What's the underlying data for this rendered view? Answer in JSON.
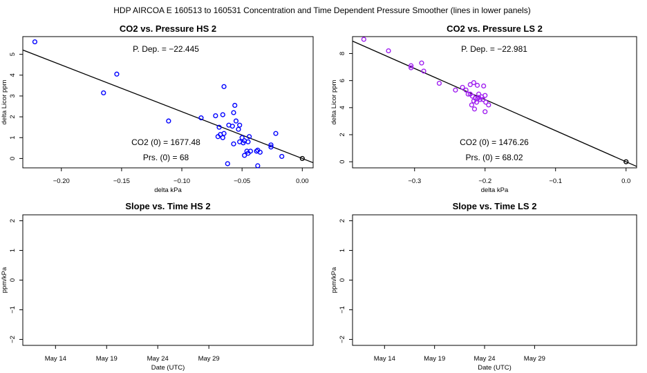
{
  "header": {
    "title": "HDP   AIRCOA E   160513 to 160531   Concentration and Time Dependent Pressure Smoother (lines in lower panels)"
  },
  "colors": {
    "hs_points": "#0000ff",
    "ls_points": "#a020f0",
    "fit_line": "#000000",
    "origin_point": "#000000"
  },
  "chart_data": [
    {
      "type": "scatter",
      "id": "co2-vs-pressure-hs2",
      "title": "CO2 vs. Pressure HS 2",
      "xlabel": "delta kPa",
      "ylabel": "delta Licor ppm",
      "xlim": [
        -0.232,
        0.009
      ],
      "ylim": [
        -0.45,
        5.85
      ],
      "xticks": [
        -0.2,
        -0.15,
        -0.1,
        -0.05,
        0.0
      ],
      "xtick_labels": [
        "−0.20",
        "−0.15",
        "−0.10",
        "−0.05",
        "0.00"
      ],
      "yticks": [
        0,
        1,
        2,
        3,
        4,
        5
      ],
      "ytick_labels": [
        "0",
        "1",
        "2",
        "3",
        "4",
        "5"
      ],
      "annotations": {
        "p_dep": "P. Dep. =  −22.445",
        "co2_0": "CO2 (0) =  1677.48",
        "prs_0": "Prs. (0) =  68"
      },
      "fit": {
        "slope": -22.445,
        "intercept": 0.0
      },
      "origin": [
        0.0,
        0.0
      ],
      "points": [
        [
          -0.222,
          5.6
        ],
        [
          -0.154,
          4.05
        ],
        [
          -0.165,
          3.15
        ],
        [
          -0.111,
          1.8
        ],
        [
          -0.084,
          1.95
        ],
        [
          -0.072,
          2.05
        ],
        [
          -0.066,
          2.1
        ],
        [
          -0.065,
          3.45
        ],
        [
          -0.056,
          2.55
        ],
        [
          -0.057,
          2.2
        ],
        [
          -0.055,
          1.8
        ],
        [
          -0.058,
          1.55
        ],
        [
          -0.061,
          1.6
        ],
        [
          -0.052,
          1.6
        ],
        [
          -0.053,
          1.4
        ],
        [
          -0.069,
          1.5
        ],
        [
          -0.068,
          1.15
        ],
        [
          -0.065,
          1.2
        ],
        [
          -0.07,
          1.05
        ],
        [
          -0.066,
          1.0
        ],
        [
          -0.05,
          1.0
        ],
        [
          -0.048,
          0.85
        ],
        [
          -0.045,
          0.8
        ],
        [
          -0.044,
          1.05
        ],
        [
          -0.052,
          0.8
        ],
        [
          -0.049,
          0.75
        ],
        [
          -0.057,
          0.7
        ],
        [
          -0.046,
          0.35
        ],
        [
          -0.048,
          0.15
        ],
        [
          -0.045,
          0.25
        ],
        [
          -0.043,
          0.35
        ],
        [
          -0.037,
          0.4
        ],
        [
          -0.038,
          0.35
        ],
        [
          -0.035,
          0.3
        ],
        [
          -0.026,
          0.65
        ],
        [
          -0.026,
          0.55
        ],
        [
          -0.022,
          1.2
        ],
        [
          -0.017,
          0.1
        ],
        [
          -0.062,
          -0.25
        ],
        [
          -0.037,
          -0.35
        ]
      ]
    },
    {
      "type": "scatter",
      "id": "co2-vs-pressure-ls2",
      "title": "CO2 vs. Pressure LS 2",
      "xlabel": "delta kPa",
      "ylabel": "delta Licor ppm",
      "xlim": [
        -0.388,
        0.015
      ],
      "ylim": [
        -0.45,
        9.25
      ],
      "xticks": [
        -0.3,
        -0.2,
        -0.1,
        0.0
      ],
      "xtick_labels": [
        "−0.3",
        "−0.2",
        "−0.1",
        "0.0"
      ],
      "yticks": [
        0,
        2,
        4,
        6,
        8
      ],
      "ytick_labels": [
        "0",
        "2",
        "4",
        "6",
        "8"
      ],
      "annotations": {
        "p_dep": "P. Dep. =  −22.981",
        "co2_0": "CO2 (0) =  1476.26",
        "prs_0": "Prs. (0) =  68.02"
      },
      "fit": {
        "slope": -22.981,
        "intercept": 0.0
      },
      "origin": [
        0.0,
        0.0
      ],
      "points": [
        [
          -0.372,
          9.05
        ],
        [
          -0.337,
          8.2
        ],
        [
          -0.305,
          7.1
        ],
        [
          -0.305,
          6.95
        ],
        [
          -0.29,
          7.3
        ],
        [
          -0.287,
          6.7
        ],
        [
          -0.265,
          5.8
        ],
        [
          -0.242,
          5.3
        ],
        [
          -0.232,
          5.5
        ],
        [
          -0.227,
          5.3
        ],
        [
          -0.221,
          5.7
        ],
        [
          -0.216,
          5.85
        ],
        [
          -0.211,
          5.65
        ],
        [
          -0.202,
          5.6
        ],
        [
          -0.221,
          5.0
        ],
        [
          -0.218,
          4.85
        ],
        [
          -0.214,
          4.7
        ],
        [
          -0.211,
          4.65
        ],
        [
          -0.207,
          4.6
        ],
        [
          -0.203,
          4.6
        ],
        [
          -0.216,
          4.5
        ],
        [
          -0.212,
          4.4
        ],
        [
          -0.209,
          4.75
        ],
        [
          -0.205,
          4.8
        ],
        [
          -0.219,
          4.2
        ],
        [
          -0.215,
          3.9
        ],
        [
          -0.199,
          4.4
        ],
        [
          -0.195,
          4.2
        ],
        [
          -0.2,
          3.7
        ],
        [
          -0.2,
          4.9
        ],
        [
          -0.224,
          5.0
        ],
        [
          -0.209,
          5.0
        ]
      ]
    },
    {
      "type": "line",
      "id": "slope-vs-time-hs2",
      "title": "Slope vs. Time HS 2",
      "xlabel": "Date (UTC)",
      "ylabel": "ppm/kPa",
      "xlim": [
        10.8,
        39.2
      ],
      "ylim": [
        -2.2,
        2.2
      ],
      "xticks": [
        14,
        19,
        24,
        29
      ],
      "xtick_labels": [
        "May 14",
        "May 19",
        "May 24",
        "May 29"
      ],
      "yticks": [
        -2,
        -1,
        0,
        1,
        2
      ],
      "ytick_labels": [
        "−2",
        "−1",
        "0",
        "1",
        "2"
      ],
      "series": []
    },
    {
      "type": "line",
      "id": "slope-vs-time-ls2",
      "title": "Slope vs. Time LS 2",
      "xlabel": "Date (UTC)",
      "ylabel": "ppm/kPa",
      "xlim": [
        10.8,
        39.2
      ],
      "ylim": [
        -2.2,
        2.2
      ],
      "xticks": [
        14,
        19,
        24,
        29
      ],
      "xtick_labels": [
        "May 14",
        "May 19",
        "May 24",
        "May 29"
      ],
      "yticks": [
        -2,
        -1,
        0,
        1,
        2
      ],
      "ytick_labels": [
        "−2",
        "−1",
        "0",
        "1",
        "2"
      ],
      "series": []
    }
  ]
}
